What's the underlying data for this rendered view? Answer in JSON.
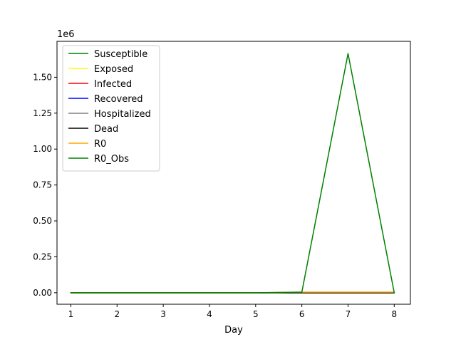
{
  "chart_data": {
    "type": "line",
    "title": "",
    "xlabel": "Day",
    "ylabel": "",
    "y_offset_label": "1e6",
    "x": [
      1,
      2,
      3,
      4,
      5,
      6,
      7,
      8
    ],
    "xlim": [
      0.7,
      8.35
    ],
    "ylim": [
      -0.08,
      1.75
    ],
    "y_scale_note": "values in millions (1e6)",
    "xticks": [
      1,
      2,
      3,
      4,
      5,
      6,
      7,
      8
    ],
    "xtick_labels": [
      "1",
      "2",
      "3",
      "4",
      "5",
      "6",
      "7",
      "8"
    ],
    "yticks": [
      0,
      0.25,
      0.5,
      0.75,
      1.0,
      1.25,
      1.5
    ],
    "ytick_labels": [
      "0.00",
      "0.25",
      "0.50",
      "0.75",
      "1.00",
      "1.25",
      "1.50"
    ],
    "grid": false,
    "legend_position": "top-left",
    "series": [
      {
        "name": "Susceptible",
        "color": "#008000",
        "values": [
          0,
          0,
          0,
          0,
          0,
          0,
          0,
          0
        ]
      },
      {
        "name": "Exposed",
        "color": "#ffff00",
        "values": [
          0,
          0,
          0,
          0,
          0,
          0,
          0,
          0
        ]
      },
      {
        "name": "Infected",
        "color": "#ff0000",
        "values": [
          0,
          0,
          0,
          0,
          0,
          0,
          0,
          0
        ]
      },
      {
        "name": "Recovered",
        "color": "#0000ff",
        "values": [
          0,
          0,
          0,
          0,
          0,
          0,
          0,
          0
        ]
      },
      {
        "name": "Hospitalized",
        "color": "#808080",
        "values": [
          0,
          0,
          0,
          0,
          0,
          0,
          0,
          0
        ]
      },
      {
        "name": "Dead",
        "color": "#000000",
        "values": [
          0,
          0,
          0,
          0,
          0,
          0,
          0,
          0
        ]
      },
      {
        "name": "R0",
        "color": "#ffa500",
        "values": [
          0,
          0,
          0,
          0,
          0,
          0.004,
          0.004,
          0.004
        ]
      },
      {
        "name": "R0_Obs",
        "color": "#008000",
        "values": [
          0,
          0,
          0,
          0,
          0,
          0.004,
          1.665,
          0
        ]
      }
    ]
  }
}
